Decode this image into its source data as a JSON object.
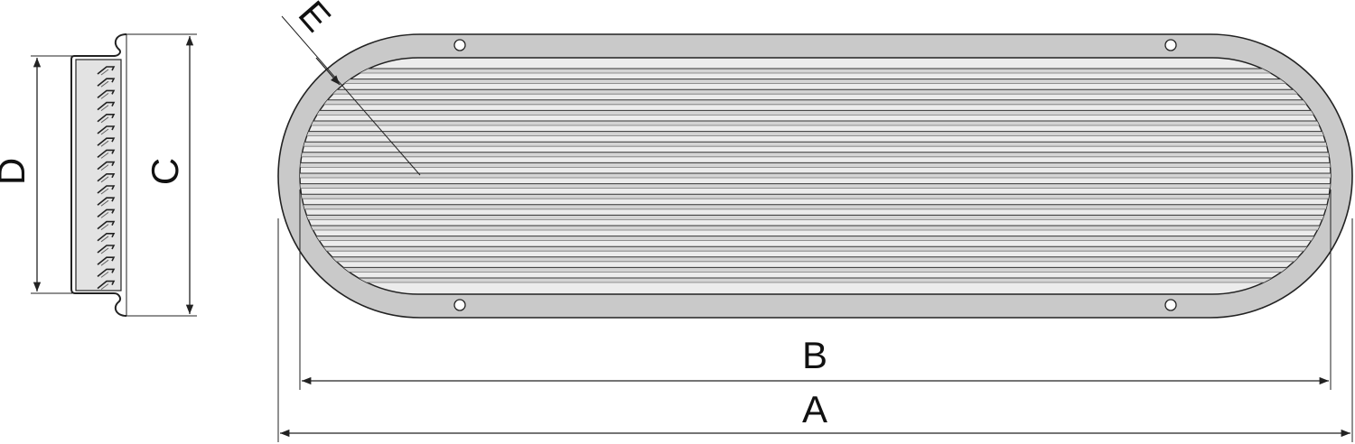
{
  "labels": {
    "a": "A",
    "b": "B",
    "c": "C",
    "d": "D",
    "e": "E"
  }
}
